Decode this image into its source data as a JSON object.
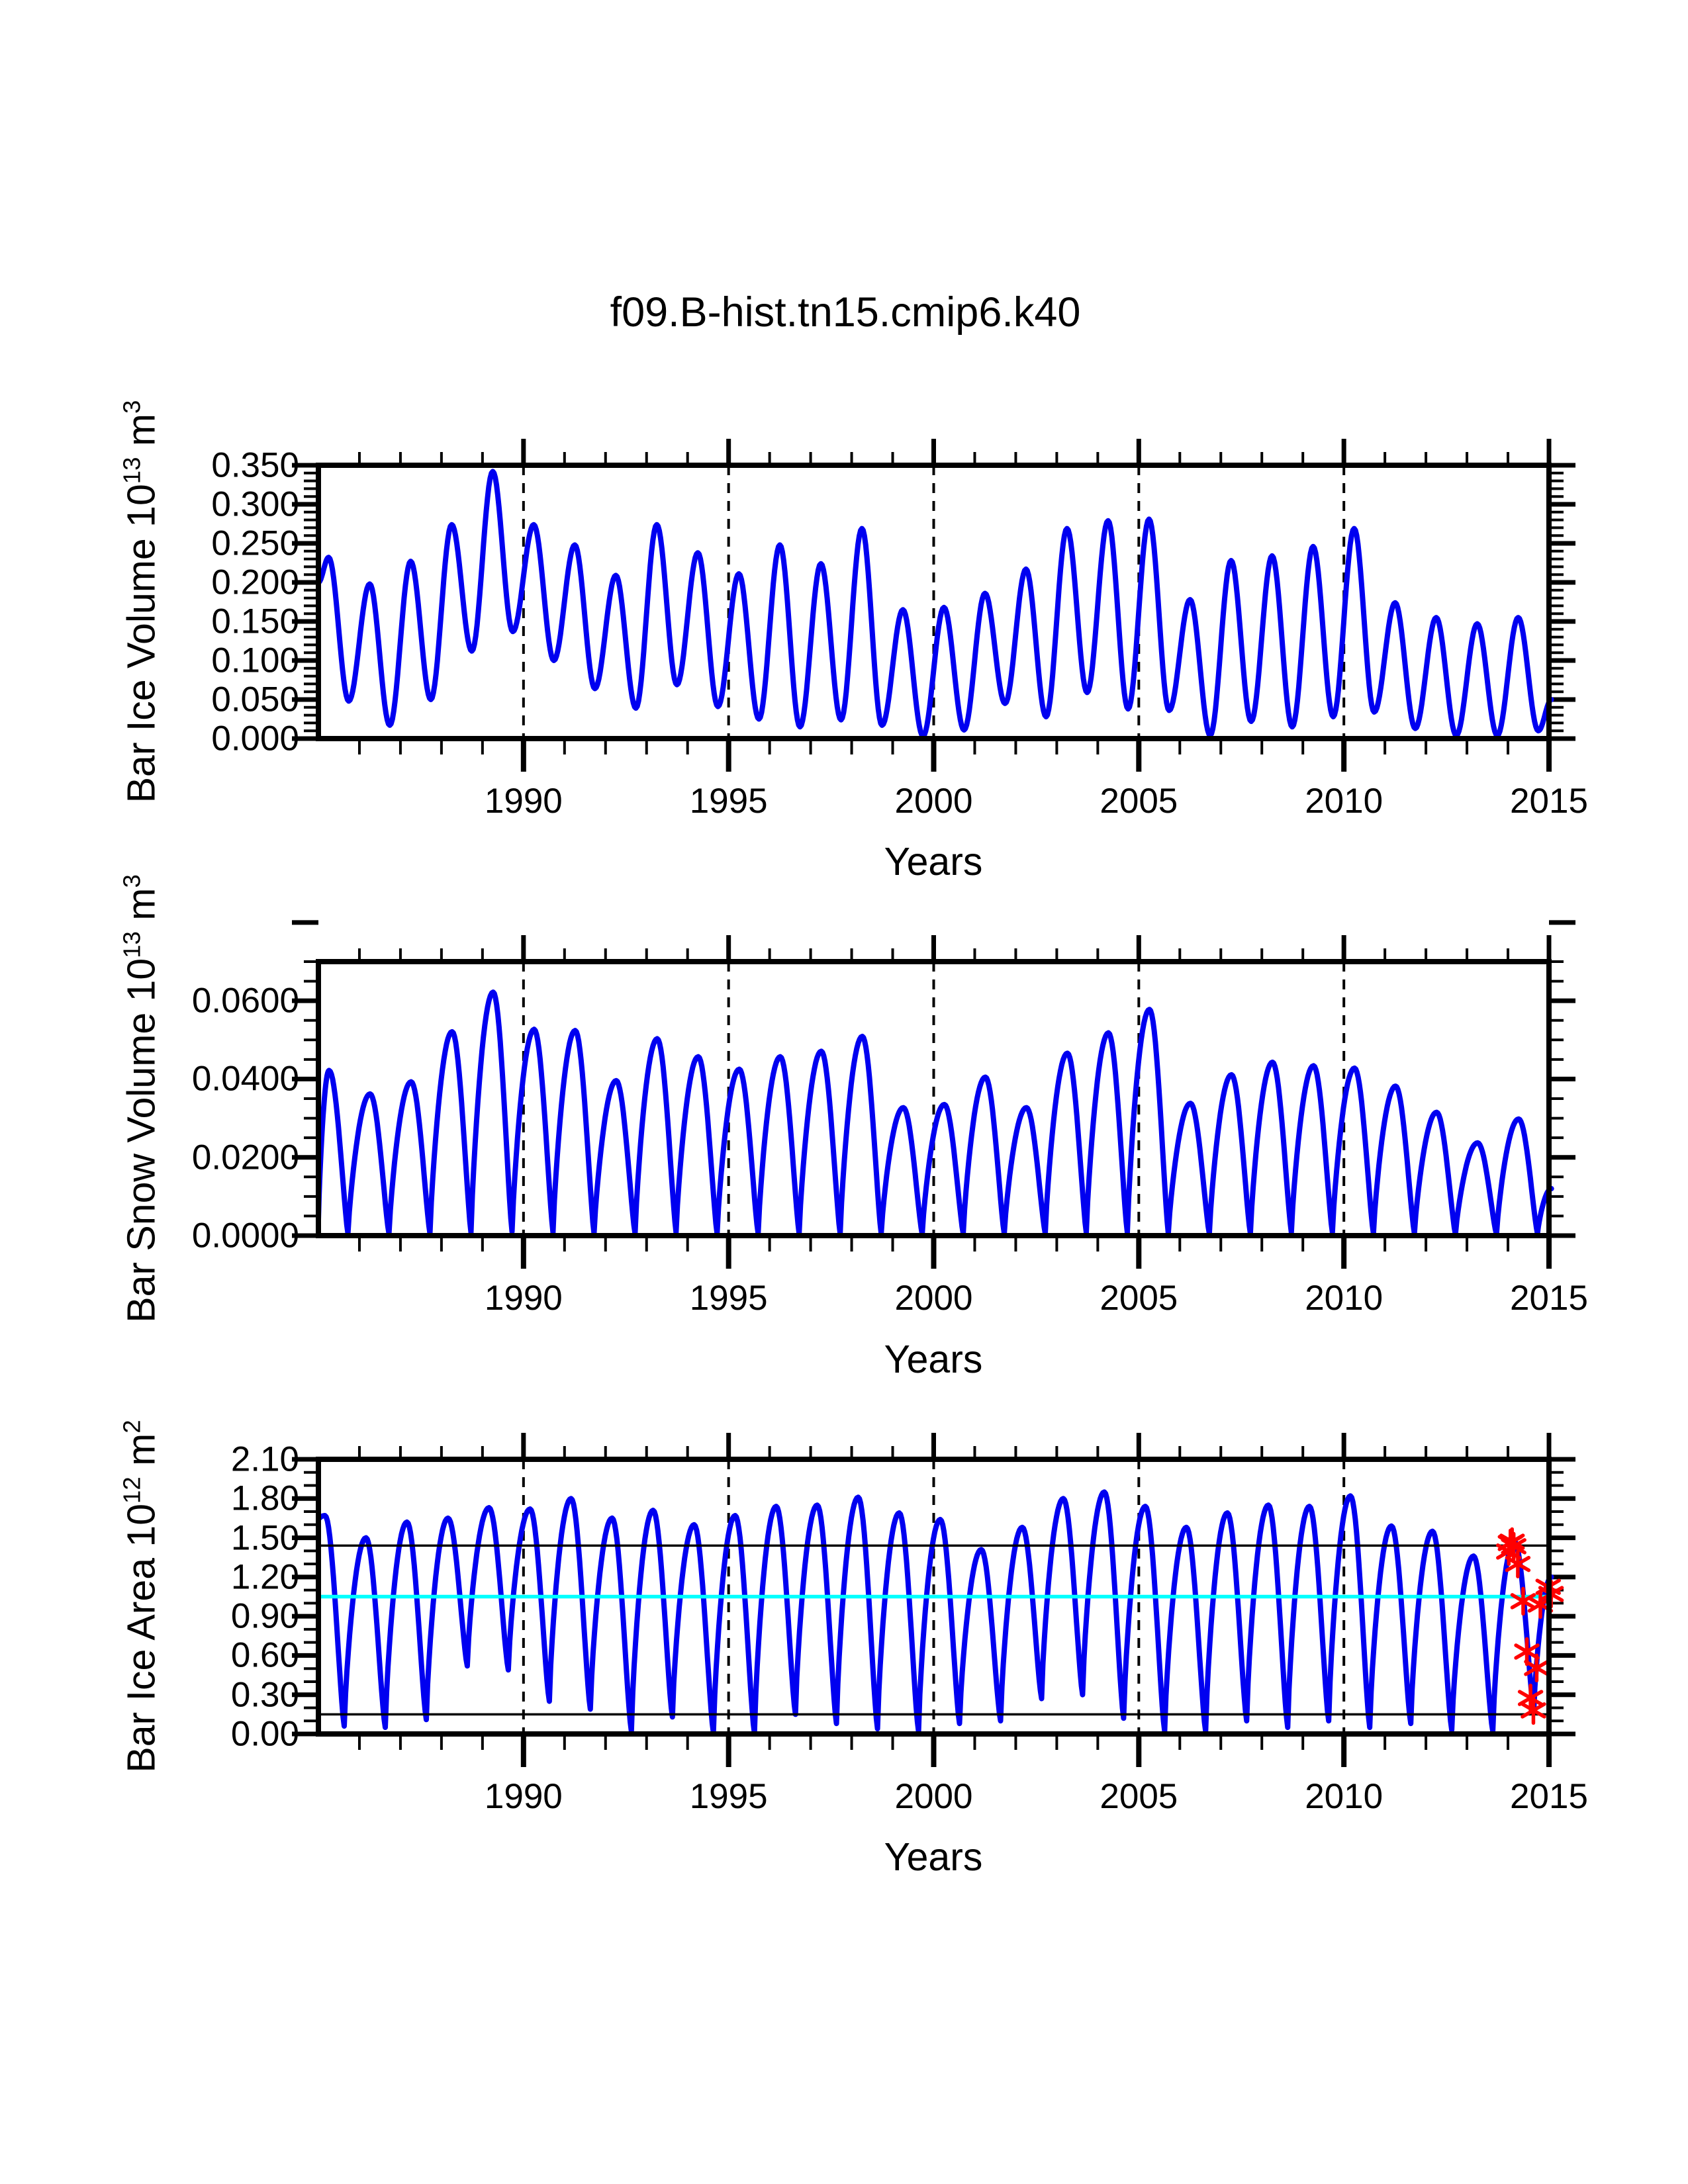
{
  "title": "f09.B-hist.tn15.cmip6.k40",
  "xlabel": "Years",
  "colors": {
    "series_line": "#0000F0",
    "reference_black": "#000000",
    "reference_cyan": "#00FFFF",
    "marker_red": "#FF0000",
    "axis": "#000000",
    "background": "#FFFFFF"
  },
  "chart_data": [
    {
      "type": "line",
      "name": "ice-volume",
      "title": "",
      "ylabel_segments": [
        {
          "t": "Bar Ice Volume 10"
        },
        {
          "t": "13",
          "sup": true
        },
        {
          "t": " m"
        },
        {
          "t": "3",
          "sup": true
        }
      ],
      "ylim": [
        0,
        0.35
      ],
      "ytick_major": 0.05,
      "ytick_minor": 0.01,
      "ytick_labels": [
        "0.000",
        "0.050",
        "0.100",
        "0.150",
        "0.200",
        "0.250",
        "0.300",
        "0.350"
      ],
      "xlim": [
        1985,
        2015
      ],
      "xtick_labels": [
        "1990",
        "1995",
        "2000",
        "2005",
        "2010",
        "2015"
      ],
      "xticks_major": [
        1990,
        1995,
        2000,
        2005,
        2010,
        2015
      ],
      "xtick_minor_step": 1,
      "grid_years": [
        1990,
        1995,
        2000,
        2005,
        2010
      ],
      "legend": "none",
      "series": {
        "shape": "smooth",
        "peak_phase": 0.25,
        "trough_phase": 0.74,
        "left_edge": 0.2,
        "end_year": 2015.06,
        "end_value": 0.05,
        "years": [
          {
            "year": 1985,
            "peak": 0.232,
            "trough": 0.048
          },
          {
            "year": 1986,
            "peak": 0.198,
            "trough": 0.017
          },
          {
            "year": 1987,
            "peak": 0.227,
            "trough": 0.05
          },
          {
            "year": 1988,
            "peak": 0.274,
            "trough": 0.112
          },
          {
            "year": 1989,
            "peak": 0.342,
            "trough": 0.137
          },
          {
            "year": 1990,
            "peak": 0.274,
            "trough": 0.1
          },
          {
            "year": 1991,
            "peak": 0.248,
            "trough": 0.064
          },
          {
            "year": 1992,
            "peak": 0.209,
            "trough": 0.039
          },
          {
            "year": 1993,
            "peak": 0.274,
            "trough": 0.069
          },
          {
            "year": 1994,
            "peak": 0.238,
            "trough": 0.041
          },
          {
            "year": 1995,
            "peak": 0.211,
            "trough": 0.025
          },
          {
            "year": 1996,
            "peak": 0.248,
            "trough": 0.015
          },
          {
            "year": 1997,
            "peak": 0.224,
            "trough": 0.024
          },
          {
            "year": 1998,
            "peak": 0.269,
            "trough": 0.017
          },
          {
            "year": 1999,
            "peak": 0.165,
            "trough": 0.003
          },
          {
            "year": 2000,
            "peak": 0.168,
            "trough": 0.011
          },
          {
            "year": 2001,
            "peak": 0.186,
            "trough": 0.045
          },
          {
            "year": 2002,
            "peak": 0.217,
            "trough": 0.028
          },
          {
            "year": 2003,
            "peak": 0.269,
            "trough": 0.059
          },
          {
            "year": 2004,
            "peak": 0.279,
            "trough": 0.038
          },
          {
            "year": 2005,
            "peak": 0.281,
            "trough": 0.036
          },
          {
            "year": 2006,
            "peak": 0.178,
            "trough": 0.004
          },
          {
            "year": 2007,
            "peak": 0.228,
            "trough": 0.022
          },
          {
            "year": 2008,
            "peak": 0.234,
            "trough": 0.015
          },
          {
            "year": 2009,
            "peak": 0.246,
            "trough": 0.028
          },
          {
            "year": 2010,
            "peak": 0.269,
            "trough": 0.034
          },
          {
            "year": 2011,
            "peak": 0.174,
            "trough": 0.013
          },
          {
            "year": 2012,
            "peak": 0.155,
            "trough": 0.004
          },
          {
            "year": 2013,
            "peak": 0.147,
            "trough": 0.004
          },
          {
            "year": 2014,
            "peak": 0.155,
            "trough": 0.01
          }
        ]
      }
    },
    {
      "type": "line",
      "name": "snow-volume",
      "title": "",
      "ylabel_segments": [
        {
          "t": "Bar Snow Volume 10"
        },
        {
          "t": "13",
          "sup": true
        },
        {
          "t": " m"
        },
        {
          "t": "3",
          "sup": true
        }
      ],
      "ylim": [
        0,
        0.07
      ],
      "ytick_major": 0.02,
      "ytick_minor": 0.005,
      "ytick_labels": [
        "0.0000",
        "0.0200",
        "0.0400",
        "0.0600"
      ],
      "xlim": [
        1985,
        2015
      ],
      "xtick_labels": [
        "1990",
        "1995",
        "2000",
        "2005",
        "2010",
        "2015"
      ],
      "xticks_major": [
        1990,
        1995,
        2000,
        2005,
        2010,
        2015
      ],
      "xtick_minor_step": 1,
      "grid_years": [
        1990,
        1995,
        2000,
        2005,
        2010
      ],
      "legend": "none",
      "series": {
        "shape": "cusp",
        "peak_pow": 0.8,
        "peak_phase": 0.26,
        "trough_phase": 0.72,
        "left_edge": 0.004,
        "end_year": 2015.06,
        "end_value": 0.012,
        "years": [
          {
            "year": 1985,
            "peak": 0.0422,
            "trough": 0.0005
          },
          {
            "year": 1986,
            "peak": 0.0362,
            "trough": 0.0005
          },
          {
            "year": 1987,
            "peak": 0.0393,
            "trough": 0.0005
          },
          {
            "year": 1988,
            "peak": 0.0521,
            "trough": 0.0008
          },
          {
            "year": 1989,
            "peak": 0.0622,
            "trough": 0.001
          },
          {
            "year": 1990,
            "peak": 0.0527,
            "trough": 0.0008
          },
          {
            "year": 1991,
            "peak": 0.0524,
            "trough": 0.0005
          },
          {
            "year": 1992,
            "peak": 0.0396,
            "trough": 0.0005
          },
          {
            "year": 1993,
            "peak": 0.0503,
            "trough": 0.0008
          },
          {
            "year": 1994,
            "peak": 0.0457,
            "trough": 0.0005
          },
          {
            "year": 1995,
            "peak": 0.0425,
            "trough": 0.0005
          },
          {
            "year": 1996,
            "peak": 0.0457,
            "trough": 0.0005
          },
          {
            "year": 1997,
            "peak": 0.0471,
            "trough": 0.0005
          },
          {
            "year": 1998,
            "peak": 0.0509,
            "trough": 0.0005
          },
          {
            "year": 1999,
            "peak": 0.0327,
            "trough": 0.0003
          },
          {
            "year": 2000,
            "peak": 0.0335,
            "trough": 0.0005
          },
          {
            "year": 2001,
            "peak": 0.0405,
            "trough": 0.0005
          },
          {
            "year": 2002,
            "peak": 0.0327,
            "trough": 0.0005
          },
          {
            "year": 2003,
            "peak": 0.0466,
            "trough": 0.0008
          },
          {
            "year": 2004,
            "peak": 0.0518,
            "trough": 0.0008
          },
          {
            "year": 2005,
            "peak": 0.0578,
            "trough": 0.0005
          },
          {
            "year": 2006,
            "peak": 0.0338,
            "trough": 0.0005
          },
          {
            "year": 2007,
            "peak": 0.0411,
            "trough": 0.0005
          },
          {
            "year": 2008,
            "peak": 0.0443,
            "trough": 0.0008
          },
          {
            "year": 2009,
            "peak": 0.0434,
            "trough": 0.0008
          },
          {
            "year": 2010,
            "peak": 0.0428,
            "trough": 0.0005
          },
          {
            "year": 2011,
            "peak": 0.0382,
            "trough": 0.0005
          },
          {
            "year": 2012,
            "peak": 0.0315,
            "trough": 0.0003
          },
          {
            "year": 2013,
            "peak": 0.0237,
            "trough": 0.0003
          },
          {
            "year": 2014,
            "peak": 0.0298,
            "trough": 0.0005
          }
        ]
      }
    },
    {
      "type": "line",
      "name": "ice-area",
      "title": "",
      "ylabel_segments": [
        {
          "t": "Bar Ice Area 10"
        },
        {
          "t": "12",
          "sup": true
        },
        {
          "t": " m"
        },
        {
          "t": "2",
          "sup": true
        }
      ],
      "ylim": [
        0,
        2.1
      ],
      "ytick_major": 0.3,
      "ytick_minor": 0.1,
      "ytick_labels": [
        "0.00",
        "0.30",
        "0.60",
        "0.90",
        "1.20",
        "1.50",
        "1.80",
        "2.10"
      ],
      "xlim": [
        1985,
        2015
      ],
      "xtick_labels": [
        "1990",
        "1995",
        "2000",
        "2005",
        "2010",
        "2015"
      ],
      "xticks_major": [
        1990,
        1995,
        2000,
        2005,
        2010,
        2015
      ],
      "xtick_minor_step": 1,
      "grid_years": [
        1990,
        1995,
        2000,
        2005,
        2010
      ],
      "legend": "none",
      "ref_lines": [
        {
          "value": 1.44,
          "color": "#000000",
          "width": 3.5
        },
        {
          "value": 1.05,
          "color": "#00FFFF",
          "width": 5.5
        },
        {
          "value": 0.15,
          "color": "#000000",
          "width": 3.5
        }
      ],
      "markers": {
        "symbol": "asterisk",
        "color": "#FF0000",
        "points": [
          [
            2014.02,
            1.395
          ],
          [
            2014.06,
            1.46
          ],
          [
            2014.1,
            1.47
          ],
          [
            2014.14,
            1.435
          ],
          [
            2014.24,
            1.3
          ],
          [
            2014.37,
            1.015
          ],
          [
            2014.46,
            0.63
          ],
          [
            2014.55,
            0.275
          ],
          [
            2014.62,
            0.18
          ],
          [
            2014.7,
            0.505
          ],
          [
            2014.79,
            0.99
          ],
          [
            2014.98,
            1.125
          ],
          [
            2015.05,
            1.07
          ]
        ]
      },
      "series": {
        "shape": "cusp",
        "peak_pow": 0.75,
        "peak_phase": 0.16,
        "trough_phase": 0.63,
        "left_edge": 1.64,
        "end_year": 2015.06,
        "end_value": 1.2,
        "years": [
          {
            "year": 1985,
            "peak": 1.67,
            "trough": 0.06
          },
          {
            "year": 1986,
            "peak": 1.5,
            "trough": 0.05
          },
          {
            "year": 1987,
            "peak": 1.62,
            "trough": 0.11
          },
          {
            "year": 1988,
            "peak": 1.65,
            "trough": 0.52
          },
          {
            "year": 1989,
            "peak": 1.73,
            "trough": 0.49
          },
          {
            "year": 1990,
            "peak": 1.72,
            "trough": 0.25
          },
          {
            "year": 1991,
            "peak": 1.8,
            "trough": 0.19
          },
          {
            "year": 1992,
            "peak": 1.65,
            "trough": 0.02
          },
          {
            "year": 1993,
            "peak": 1.71,
            "trough": 0.13
          },
          {
            "year": 1994,
            "peak": 1.6,
            "trough": 0.01
          },
          {
            "year": 1995,
            "peak": 1.67,
            "trough": 0.005
          },
          {
            "year": 1996,
            "peak": 1.74,
            "trough": 0.15
          },
          {
            "year": 1997,
            "peak": 1.75,
            "trough": 0.08
          },
          {
            "year": 1998,
            "peak": 1.81,
            "trough": 0.04
          },
          {
            "year": 1999,
            "peak": 1.69,
            "trough": 0.02
          },
          {
            "year": 2000,
            "peak": 1.64,
            "trough": 0.08
          },
          {
            "year": 2001,
            "peak": 1.41,
            "trough": 0.1
          },
          {
            "year": 2002,
            "peak": 1.58,
            "trough": 0.27
          },
          {
            "year": 2003,
            "peak": 1.8,
            "trough": 0.3
          },
          {
            "year": 2004,
            "peak": 1.85,
            "trough": 0.12
          },
          {
            "year": 2005,
            "peak": 1.74,
            "trough": 0.02
          },
          {
            "year": 2006,
            "peak": 1.58,
            "trough": 0.02
          },
          {
            "year": 2007,
            "peak": 1.69,
            "trough": 0.1
          },
          {
            "year": 2008,
            "peak": 1.75,
            "trough": 0.05
          },
          {
            "year": 2009,
            "peak": 1.74,
            "trough": 0.1
          },
          {
            "year": 2010,
            "peak": 1.82,
            "trough": 0.05
          },
          {
            "year": 2011,
            "peak": 1.59,
            "trough": 0.08
          },
          {
            "year": 2012,
            "peak": 1.55,
            "trough": 0.03
          },
          {
            "year": 2013,
            "peak": 1.36,
            "trough": 0.02
          },
          {
            "year": 2014,
            "peak": 1.47,
            "trough": 0.18
          }
        ]
      }
    }
  ]
}
